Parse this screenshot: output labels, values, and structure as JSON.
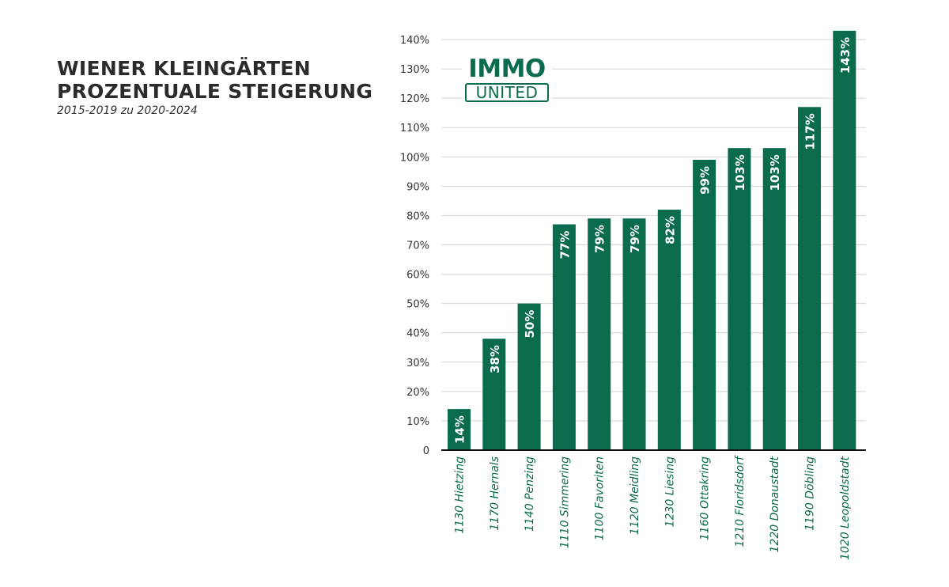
{
  "title_line1": "WIENER KLEINGÄRTEN",
  "title_line2": "PROZENTUALE STEIGERUNG",
  "subtitle": "2015-2019 zu 2020-2024",
  "logo": {
    "top": "IMMO",
    "bottom": "UNITED"
  },
  "colors": {
    "bar": "#0b6b4f",
    "grid": "#d4d4d4",
    "axis": "#111111",
    "label": "#0b6b4f"
  },
  "chart_data": {
    "type": "bar",
    "title": "WIENER KLEINGÄRTEN PROZENTUALE STEIGERUNG",
    "subtitle": "2015-2019 zu 2020-2024",
    "categories": [
      "1130 Hietzing",
      "1170 Hernals",
      "1140 Penzing",
      "1110 Simmering",
      "1100 Favoriten",
      "1120 Meidling",
      "1230 Liesing",
      "1160 Ottakring",
      "1210 Floridsdorf",
      "1220 Donaustadt",
      "1190 Döbling",
      "1020 Leopoldstadt"
    ],
    "values": [
      14,
      38,
      50,
      77,
      79,
      79,
      82,
      99,
      103,
      103,
      117,
      143
    ],
    "data_labels": [
      "14%",
      "38%",
      "50%",
      "77%",
      "79%",
      "79%",
      "82%",
      "99%",
      "103%",
      "103%",
      "117%",
      "143%"
    ],
    "ylim": [
      0,
      140
    ],
    "yticks": [
      "0",
      "10%",
      "20%",
      "30%",
      "40%",
      "50%",
      "60%",
      "70%",
      "80%",
      "90%",
      "100%",
      "110%",
      "120%",
      "130%",
      "140%"
    ],
    "grid": true
  }
}
